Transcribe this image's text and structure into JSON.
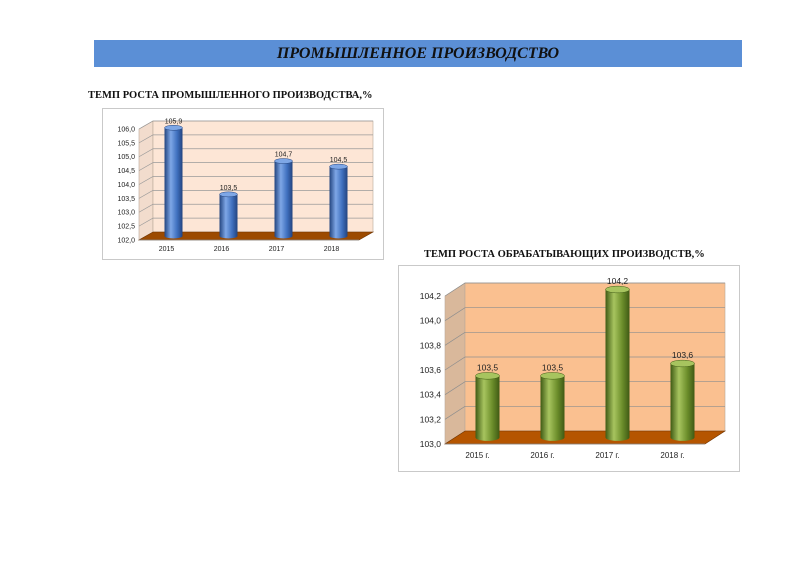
{
  "page": {
    "header": "ПРОМЫШЛЕННОЕ ПРОИЗВОДСТВО"
  },
  "chart_data": [
    {
      "type": "bar",
      "title": "ТЕМП РОСТА ПРОМЫШЛЕННОГО ПРОИЗВОДСТВА,%",
      "categories": [
        "2015",
        "2016",
        "2017",
        "2018"
      ],
      "values": [
        105.9,
        103.5,
        104.7,
        104.5
      ],
      "value_labels": [
        "105,9",
        "103,5",
        "104,7",
        "104,5"
      ],
      "ylim": [
        102.0,
        106.0
      ],
      "yticks": [
        "102,0",
        "102,5",
        "103,0",
        "103,5",
        "104,0",
        "104,5",
        "105,0",
        "105,5",
        "106,0"
      ],
      "ytick_values": [
        102.0,
        102.5,
        103.0,
        103.5,
        104.0,
        104.5,
        105.0,
        105.5,
        106.0
      ],
      "grid": true,
      "legend": "none",
      "colors": {
        "bar": "#3f70bf",
        "bar_light": "#7ea7e6",
        "bar_dark": "#23447f",
        "back_wall": "#fde6d6",
        "side_wall": "#f2dccd",
        "floor": "#9c4a00",
        "grid": "#9a9a9a"
      }
    },
    {
      "type": "bar",
      "title": "ТЕМП РОСТА ОБРАБАТЫВАЮЩИХ ПРОИЗВОДСТВ,%",
      "categories": [
        "2015 г.",
        "2016 г.",
        "2017 г.",
        "2018 г."
      ],
      "values": [
        103.5,
        103.5,
        104.2,
        103.6
      ],
      "value_labels": [
        "103,5",
        "103,5",
        "104,2",
        "103,6"
      ],
      "ylim": [
        103.0,
        104.2
      ],
      "yticks": [
        "103,0",
        "103,2",
        "103,4",
        "103,6",
        "103,8",
        "104,0",
        "104,2"
      ],
      "ytick_values": [
        103.0,
        103.2,
        103.4,
        103.6,
        103.8,
        104.0,
        104.2
      ],
      "grid": true,
      "legend": "none",
      "colors": {
        "bar": "#6c8e2b",
        "bar_light": "#a7c45f",
        "bar_dark": "#3f5a14",
        "back_wall": "#fac090",
        "side_wall": "#d9b89b",
        "floor": "#b55500",
        "grid": "#8e8e8e"
      }
    }
  ]
}
